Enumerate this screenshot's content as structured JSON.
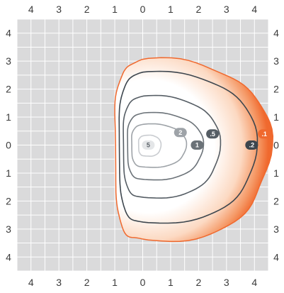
{
  "chart_data": {
    "type": "contour",
    "title": "",
    "xlabel": "",
    "ylabel": "",
    "x_ticks": [
      "4",
      "3",
      "2",
      "1",
      "0",
      "1",
      "2",
      "3",
      "4"
    ],
    "y_ticks": [
      "4",
      "3",
      "2",
      "1",
      "0",
      "1",
      "2",
      "3",
      "4"
    ],
    "x_tick_values": [
      -4,
      -3,
      -2,
      -1,
      0,
      1,
      2,
      3,
      4
    ],
    "y_tick_values": [
      4,
      3,
      2,
      1,
      0,
      -1,
      -2,
      -3,
      -4
    ],
    "xlim": [
      -4.5,
      4.5
    ],
    "ylim": [
      -4.5,
      4.5
    ],
    "grid": true,
    "grid_step": 0.5,
    "background_color": "#dadadb",
    "grid_color": "#ffffff",
    "fill_color": "#f0692e",
    "contour_color": "#3d464e",
    "max_value_location": [
      0.2,
      0.0
    ],
    "contours": [
      {
        "level": ".1",
        "label_at": [
          4.35,
          0.4
        ],
        "color": "#f0692e",
        "radii": {
          "e": 4.35,
          "n": 3.05,
          "w": 1.2,
          "s": 3.45
        }
      },
      {
        "level": ".2",
        "label_at": [
          3.9,
          0.0
        ],
        "color": "#3d464e",
        "radii": {
          "e": 3.85,
          "n": 2.6,
          "w": 1.05,
          "s": 2.8
        }
      },
      {
        "level": ".5",
        "label_at": [
          2.5,
          0.4
        ],
        "color": "#555d64",
        "radii": {
          "e": 2.55,
          "n": 1.75,
          "w": 0.9,
          "s": 1.9
        }
      },
      {
        "level": "1",
        "label_at": [
          1.95,
          0.0
        ],
        "color": "#6b7278",
        "radii": {
          "e": 1.95,
          "n": 1.15,
          "w": 0.75,
          "s": 1.25
        }
      },
      {
        "level": "2",
        "label_at": [
          1.35,
          0.45
        ],
        "color": "#9ea3a8",
        "radii": {
          "e": 1.35,
          "n": 0.75,
          "w": 0.6,
          "s": 0.8
        }
      },
      {
        "level": "5",
        "label_at": [
          0.2,
          0.0
        ],
        "color": "#c9ccd0",
        "radii": {
          "e": 0.45,
          "n": 0.35,
          "w": 0.35,
          "s": 0.4
        }
      }
    ]
  }
}
